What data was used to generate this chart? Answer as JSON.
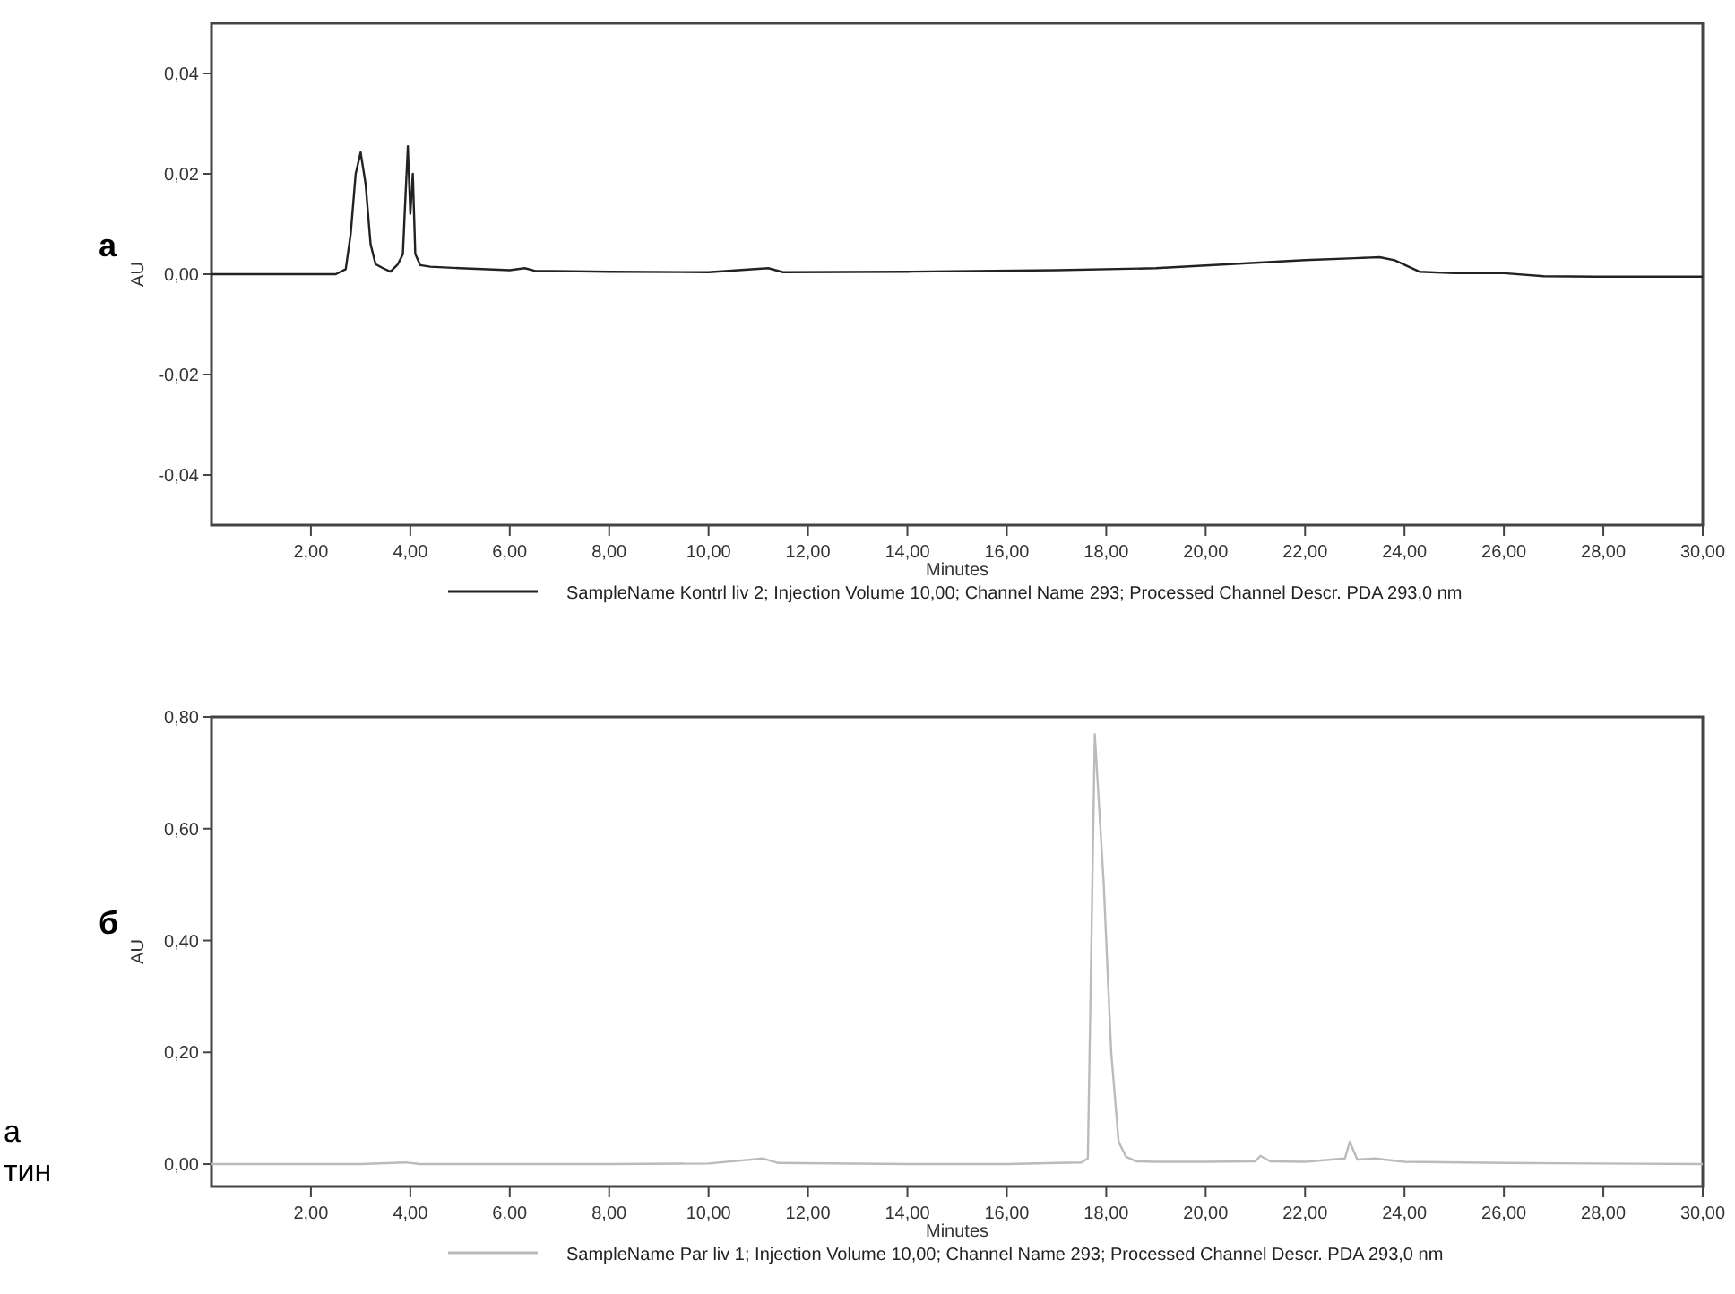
{
  "chart_data": [
    {
      "type": "line",
      "title": "а",
      "xlabel": "Minutes",
      "ylabel": "AU",
      "legend": "bottom",
      "grid": false,
      "xlim": [
        0,
        30
      ],
      "ylim": [
        -0.05,
        0.05
      ],
      "xticks": [
        {
          "value": 2,
          "label": "2,00"
        },
        {
          "value": 4,
          "label": "4,00"
        },
        {
          "value": 6,
          "label": "6,00"
        },
        {
          "value": 8,
          "label": "8,00"
        },
        {
          "value": 10,
          "label": "10,00"
        },
        {
          "value": 12,
          "label": "12,00"
        },
        {
          "value": 14,
          "label": "14,00"
        },
        {
          "value": 16,
          "label": "16,00"
        },
        {
          "value": 18,
          "label": "18,00"
        },
        {
          "value": 20,
          "label": "20,00"
        },
        {
          "value": 22,
          "label": "22,00"
        },
        {
          "value": 24,
          "label": "24,00"
        },
        {
          "value": 26,
          "label": "26,00"
        },
        {
          "value": 28,
          "label": "28,00"
        },
        {
          "value": 30,
          "label": "30,00"
        }
      ],
      "yticks": [
        {
          "value": -0.04,
          "label": "-0,04"
        },
        {
          "value": -0.02,
          "label": "-0,02"
        },
        {
          "value": 0,
          "label": "0,00"
        },
        {
          "value": 0.02,
          "label": "0,02"
        },
        {
          "value": 0.04,
          "label": "0,04"
        }
      ],
      "series": [
        {
          "name": "SampleName Kontrl liv 2; Injection Volume 10,00; Channel Name 293; Processed Channel Descr. PDA 293,0 nm",
          "color": "#222222",
          "x": [
            0,
            2.5,
            2.7,
            2.8,
            2.9,
            3.0,
            3.1,
            3.2,
            3.3,
            3.45,
            3.6,
            3.75,
            3.85,
            3.9,
            3.95,
            4.0,
            4.05,
            4.1,
            4.2,
            4.4,
            5.0,
            6.0,
            6.3,
            6.5,
            8.0,
            10.0,
            11.2,
            11.5,
            14.0,
            17.0,
            19.0,
            20.5,
            22.0,
            23.0,
            23.5,
            23.8,
            24.3,
            25.0,
            26.0,
            26.8,
            28.0,
            30.0
          ],
          "values": [
            0,
            0,
            0.001,
            0.008,
            0.02,
            0.0243,
            0.018,
            0.006,
            0.002,
            0.0012,
            0.0005,
            0.002,
            0.004,
            0.015,
            0.0255,
            0.012,
            0.02,
            0.004,
            0.0018,
            0.0015,
            0.0012,
            0.0008,
            0.0012,
            0.0007,
            0.0005,
            0.0004,
            0.0012,
            0.0004,
            0.0005,
            0.0008,
            0.0012,
            0.002,
            0.0028,
            0.0032,
            0.0034,
            0.0028,
            0.0005,
            0.0002,
            0.0002,
            -0.0004,
            -0.0005,
            -0.0005
          ]
        }
      ]
    },
    {
      "type": "line",
      "title": "б",
      "xlabel": "Minutes",
      "ylabel": "AU",
      "legend": "bottom",
      "grid": false,
      "xlim": [
        0,
        30
      ],
      "ylim": [
        -0.04,
        0.8
      ],
      "xticks": [
        {
          "value": 2,
          "label": "2,00"
        },
        {
          "value": 4,
          "label": "4,00"
        },
        {
          "value": 6,
          "label": "6,00"
        },
        {
          "value": 8,
          "label": "8,00"
        },
        {
          "value": 10,
          "label": "10,00"
        },
        {
          "value": 12,
          "label": "12,00"
        },
        {
          "value": 14,
          "label": "14,00"
        },
        {
          "value": 16,
          "label": "16,00"
        },
        {
          "value": 18,
          "label": "18,00"
        },
        {
          "value": 20,
          "label": "20,00"
        },
        {
          "value": 22,
          "label": "22,00"
        },
        {
          "value": 24,
          "label": "24,00"
        },
        {
          "value": 26,
          "label": "26,00"
        },
        {
          "value": 28,
          "label": "28,00"
        },
        {
          "value": 30,
          "label": "30,00"
        }
      ],
      "yticks": [
        {
          "value": 0,
          "label": "0,00"
        },
        {
          "value": 0.2,
          "label": "0,20"
        },
        {
          "value": 0.4,
          "label": "0,40"
        },
        {
          "value": 0.6,
          "label": "0,60"
        },
        {
          "value": 0.8,
          "label": "0,80"
        }
      ],
      "annotations": [
        "а",
        "тин"
      ],
      "series": [
        {
          "name": "SampleName Par liv 1; Injection Volume 10,00; Channel Name 293; Processed Channel Descr. PDA 293,0 nm",
          "color": "#bbbbbb",
          "x": [
            0,
            3.0,
            3.9,
            4.2,
            6.0,
            8.0,
            10.0,
            11.1,
            11.4,
            14.0,
            16.0,
            17.0,
            17.5,
            17.63,
            17.77,
            17.95,
            18.1,
            18.25,
            18.4,
            18.6,
            19.0,
            20.0,
            21.0,
            21.1,
            21.3,
            22.0,
            22.8,
            22.9,
            23.05,
            23.4,
            24.0,
            26.0,
            30.0
          ],
          "values": [
            0,
            0,
            0.003,
            0,
            0,
            0,
            0.001,
            0.01,
            0.002,
            0,
            0,
            0.002,
            0.003,
            0.01,
            0.769,
            0.5,
            0.2,
            0.04,
            0.013,
            0.005,
            0.004,
            0.004,
            0.005,
            0.015,
            0.005,
            0.004,
            0.01,
            0.04,
            0.008,
            0.01,
            0.004,
            0.002,
            0
          ]
        }
      ]
    }
  ]
}
